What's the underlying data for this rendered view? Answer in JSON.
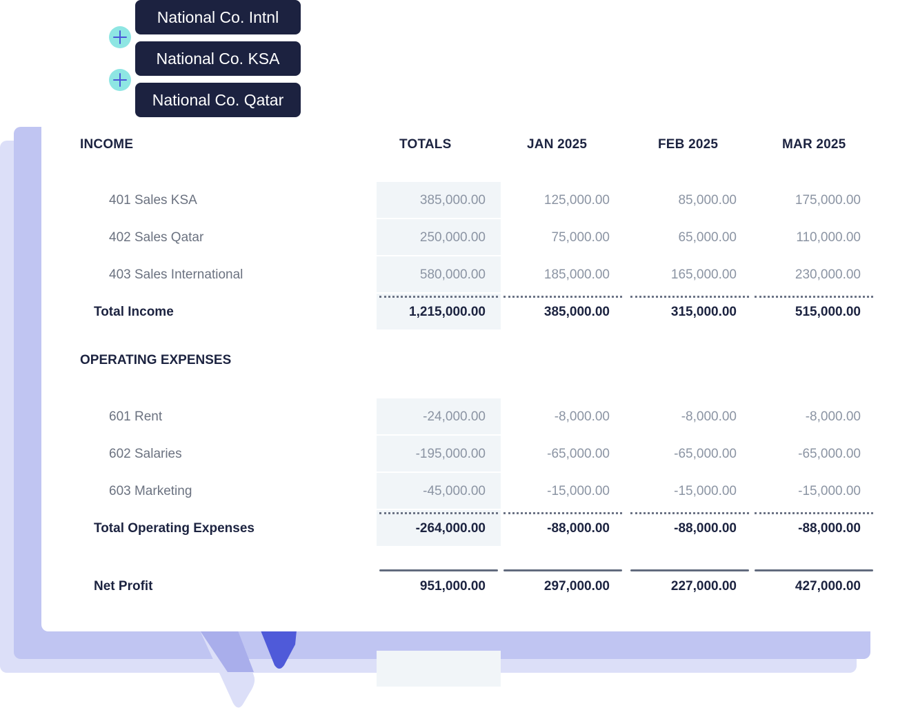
{
  "entities": [
    {
      "label": "National Co. Intnl"
    },
    {
      "label": "National Co. KSA"
    },
    {
      "label": "National Co. Qatar"
    }
  ],
  "columns": [
    "TOTALS",
    "JAN 2025",
    "FEB 2025",
    "MAR 2025"
  ],
  "income": {
    "title": "INCOME",
    "rows": [
      {
        "label": "401 Sales KSA",
        "values": [
          "385,000.00",
          "125,000.00",
          "85,000.00",
          "175,000.00"
        ]
      },
      {
        "label": "402 Sales Qatar",
        "values": [
          "250,000.00",
          "75,000.00",
          "65,000.00",
          "110,000.00"
        ]
      },
      {
        "label": "403 Sales International",
        "values": [
          "580,000.00",
          "185,000.00",
          "165,000.00",
          "230,000.00"
        ]
      }
    ],
    "total": {
      "label": "Total Income",
      "values": [
        "1,215,000.00",
        "385,000.00",
        "315,000.00",
        "515,000.00"
      ]
    }
  },
  "expenses": {
    "title": "OPERATING EXPENSES",
    "rows": [
      {
        "label": "601 Rent",
        "values": [
          "-24,000.00",
          "-8,000.00",
          "-8,000.00",
          "-8,000.00"
        ]
      },
      {
        "label": "602 Salaries",
        "values": [
          "-195,000.00",
          "-65,000.00",
          "-65,000.00",
          "-65,000.00"
        ]
      },
      {
        "label": "603 Marketing",
        "values": [
          "-45,000.00",
          "-15,000.00",
          "-15,000.00",
          "-15,000.00"
        ]
      }
    ],
    "total": {
      "label": "Total Operating Expenses",
      "values": [
        "-264,000.00",
        "-88,000.00",
        "-88,000.00",
        "-88,000.00"
      ]
    }
  },
  "net_profit": {
    "label": "Net Profit",
    "values": [
      "951,000.00",
      "297,000.00",
      "227,000.00",
      "427,000.00"
    ]
  },
  "colors": {
    "entity_bg": "#1c2240",
    "plus_bg": "#8ee6e3",
    "plus_icon": "#4a55d8",
    "totals_column_bg": "#f1f5f8"
  }
}
